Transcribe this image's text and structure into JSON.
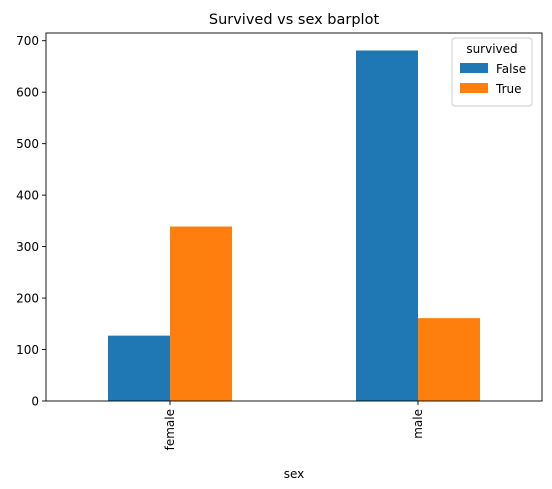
{
  "chart_data": {
    "type": "bar",
    "title": "Survived vs sex barplot",
    "xlabel": "sex",
    "ylabel": "",
    "categories": [
      "female",
      "male"
    ],
    "series": [
      {
        "name": "False",
        "color": "#1f77b4",
        "values": [
          127,
          681
        ]
      },
      {
        "name": "True",
        "color": "#ff7f0e",
        "values": [
          339,
          161
        ]
      }
    ],
    "ylim": [
      0,
      715
    ],
    "yticks": [
      0,
      100,
      200,
      300,
      400,
      500,
      600,
      700
    ],
    "legend": {
      "title": "survived",
      "placement": "top-right"
    },
    "grid": false,
    "xtick_rotation": "vertical"
  }
}
